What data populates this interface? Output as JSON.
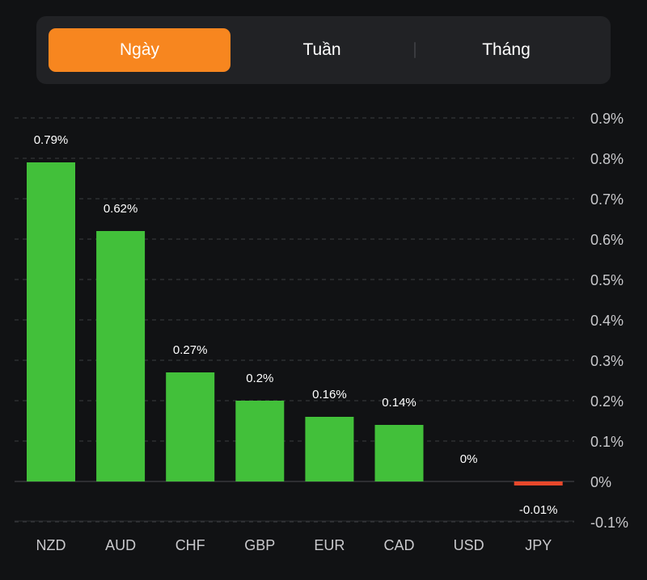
{
  "tabs": {
    "items": [
      {
        "label": "Ngày",
        "active": true
      },
      {
        "label": "Tuần",
        "active": false
      },
      {
        "label": "Tháng",
        "active": false
      }
    ]
  },
  "colors": {
    "background": "#111214",
    "positive": "#42c03a",
    "negative": "#e8482b",
    "active_tab": "#f7861f",
    "grid": "#3c3d41",
    "axis_text": "#c9c9cc"
  },
  "chart_data": {
    "type": "bar",
    "categories": [
      "NZD",
      "AUD",
      "CHF",
      "GBP",
      "EUR",
      "CAD",
      "USD",
      "JPY"
    ],
    "values": [
      0.79,
      0.62,
      0.27,
      0.2,
      0.16,
      0.14,
      0,
      -0.01
    ],
    "data_labels": [
      "0.79%",
      "0.62%",
      "0.27%",
      "0.2%",
      "0.16%",
      "0.14%",
      "0%",
      "-0.01%"
    ],
    "y_ticks": [
      0.9,
      0.8,
      0.7,
      0.6,
      0.5,
      0.4,
      0.3,
      0.2,
      0.1,
      0,
      -0.1
    ],
    "y_tick_labels": [
      "0.9%",
      "0.8%",
      "0.7%",
      "0.6%",
      "0.5%",
      "0.4%",
      "0.3%",
      "0.2%",
      "0.1%",
      "0%",
      "-0.1%"
    ],
    "ylim": [
      -0.1,
      0.9
    ],
    "y_axis_position": "right",
    "grid": true,
    "title": "",
    "xlabel": "",
    "ylabel": ""
  }
}
